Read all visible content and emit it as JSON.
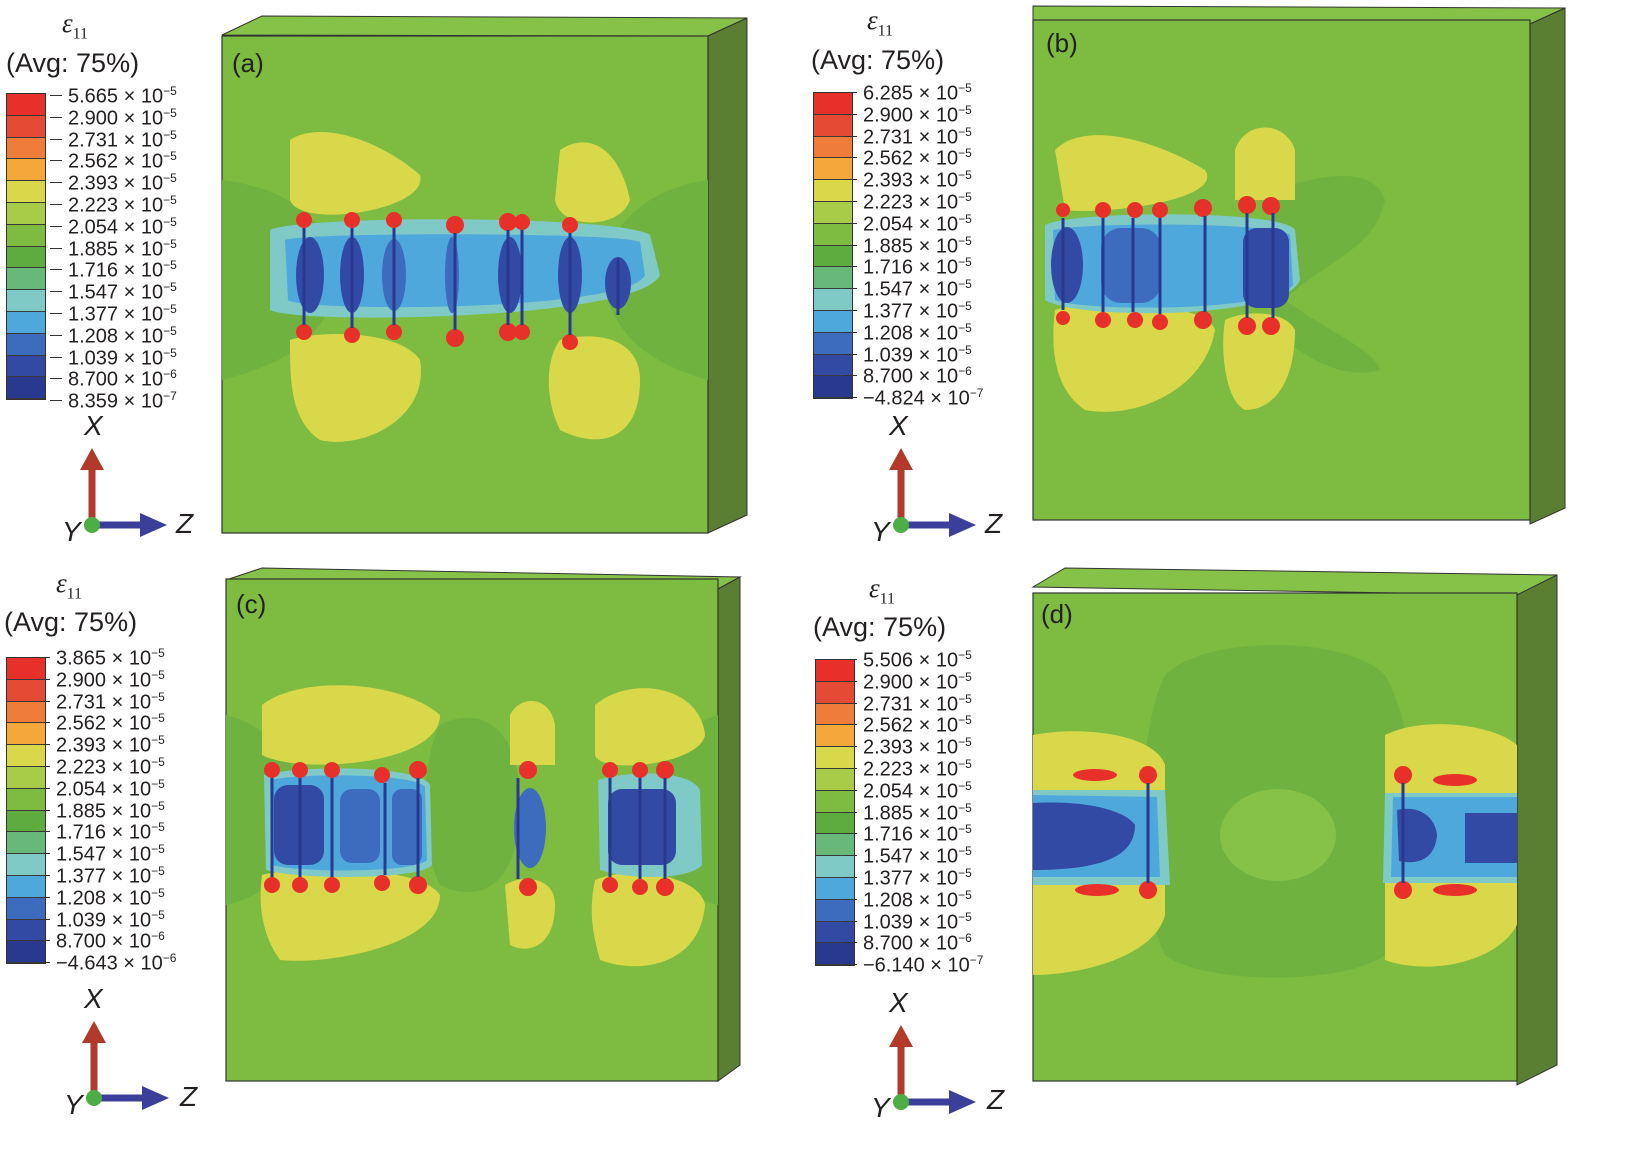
{
  "figure": {
    "colors": [
      "#e8302a",
      "#e44a34",
      "#f07c3a",
      "#f4a83a",
      "#d9d84a",
      "#a9cc48",
      "#7dbb41",
      "#5eab3f",
      "#68b87a",
      "#7fcac6",
      "#4fa8dc",
      "#3d6bbd",
      "#334aa5",
      "#2a3990"
    ],
    "panels": [
      {
        "letter": "(a)",
        "legend": {
          "symbol": "ε",
          "subscript": "11",
          "avg": "(Avg: 75%)",
          "labels": [
            {
              "m": "5.665 × 10",
              "e": "−5"
            },
            {
              "m": "2.900 × 10",
              "e": "−5"
            },
            {
              "m": "2.731 × 10",
              "e": "−5"
            },
            {
              "m": "2.562 × 10",
              "e": "−5"
            },
            {
              "m": "2.393 × 10",
              "e": "−5"
            },
            {
              "m": "2.223 × 10",
              "e": "−5"
            },
            {
              "m": "2.054 × 10",
              "e": "−5"
            },
            {
              "m": "1.885 × 10",
              "e": "−5"
            },
            {
              "m": "1.716 × 10",
              "e": "−5"
            },
            {
              "m": "1.547 × 10",
              "e": "−5"
            },
            {
              "m": "1.377 × 10",
              "e": "−5"
            },
            {
              "m": "1.208 × 10",
              "e": "−5"
            },
            {
              "m": "1.039 × 10",
              "e": "−5"
            },
            {
              "m": "8.700 × 10",
              "e": "−6"
            },
            {
              "m": "8.359 × 10",
              "e": "−7"
            }
          ]
        },
        "axes": {
          "x": "X",
          "y": "Y",
          "z": "Z"
        }
      },
      {
        "letter": "(b)",
        "legend": {
          "symbol": "ε",
          "subscript": "11",
          "avg": "(Avg: 75%)",
          "labels": [
            {
              "m": "6.285 × 10",
              "e": "−5"
            },
            {
              "m": "2.900 × 10",
              "e": "−5"
            },
            {
              "m": "2.731 × 10",
              "e": "−5"
            },
            {
              "m": "2.562 × 10",
              "e": "−5"
            },
            {
              "m": "2.393 × 10",
              "e": "−5"
            },
            {
              "m": "2.223 × 10",
              "e": "−5"
            },
            {
              "m": "2.054 × 10",
              "e": "−5"
            },
            {
              "m": "1.885 × 10",
              "e": "−5"
            },
            {
              "m": "1.716 × 10",
              "e": "−5"
            },
            {
              "m": "1.547 × 10",
              "e": "−5"
            },
            {
              "m": "1.377 × 10",
              "e": "−5"
            },
            {
              "m": "1.208 × 10",
              "e": "−5"
            },
            {
              "m": "1.039 × 10",
              "e": "−5"
            },
            {
              "m": "8.700 × 10",
              "e": "−6"
            },
            {
              "m": "−4.824 × 10",
              "e": "−7"
            }
          ]
        },
        "axes": {
          "x": "X",
          "y": "Y",
          "z": "Z"
        }
      },
      {
        "letter": "(c)",
        "legend": {
          "symbol": "ε",
          "subscript": "11",
          "avg": "(Avg: 75%)",
          "labels": [
            {
              "m": "3.865 × 10",
              "e": "−5"
            },
            {
              "m": "2.900 × 10",
              "e": "−5"
            },
            {
              "m": "2.731 × 10",
              "e": "−5"
            },
            {
              "m": "2.562 × 10",
              "e": "−5"
            },
            {
              "m": "2.393 × 10",
              "e": "−5"
            },
            {
              "m": "2.223 × 10",
              "e": "−5"
            },
            {
              "m": "2.054 × 10",
              "e": "−5"
            },
            {
              "m": "1.885 × 10",
              "e": "−5"
            },
            {
              "m": "1.716 × 10",
              "e": "−5"
            },
            {
              "m": "1.547 × 10",
              "e": "−5"
            },
            {
              "m": "1.377 × 10",
              "e": "−5"
            },
            {
              "m": "1.208 × 10",
              "e": "−5"
            },
            {
              "m": "1.039 × 10",
              "e": "−5"
            },
            {
              "m": "8.700 × 10",
              "e": "−6"
            },
            {
              "m": "−4.643 × 10",
              "e": "−6"
            }
          ]
        },
        "axes": {
          "x": "X",
          "y": "Y",
          "z": "Z"
        }
      },
      {
        "letter": "(d)",
        "legend": {
          "symbol": "ε",
          "subscript": "11",
          "avg": "(Avg: 75%)",
          "labels": [
            {
              "m": "5.506 × 10",
              "e": "−5"
            },
            {
              "m": "2.900 × 10",
              "e": "−5"
            },
            {
              "m": "2.731 × 10",
              "e": "−5"
            },
            {
              "m": "2.562 × 10",
              "e": "−5"
            },
            {
              "m": "2.393 × 10",
              "e": "−5"
            },
            {
              "m": "2.223 × 10",
              "e": "−5"
            },
            {
              "m": "2.054 × 10",
              "e": "−5"
            },
            {
              "m": "1.885 × 10",
              "e": "−5"
            },
            {
              "m": "1.716 × 10",
              "e": "−5"
            },
            {
              "m": "1.547 × 10",
              "e": "−5"
            },
            {
              "m": "1.377 × 10",
              "e": "−5"
            },
            {
              "m": "1.208 × 10",
              "e": "−5"
            },
            {
              "m": "1.039 × 10",
              "e": "−5"
            },
            {
              "m": "8.700 × 10",
              "e": "−6"
            },
            {
              "m": "−6.140 × 10",
              "e": "−7"
            }
          ]
        },
        "axes": {
          "x": "X",
          "y": "Y",
          "z": "Z"
        }
      }
    ]
  }
}
